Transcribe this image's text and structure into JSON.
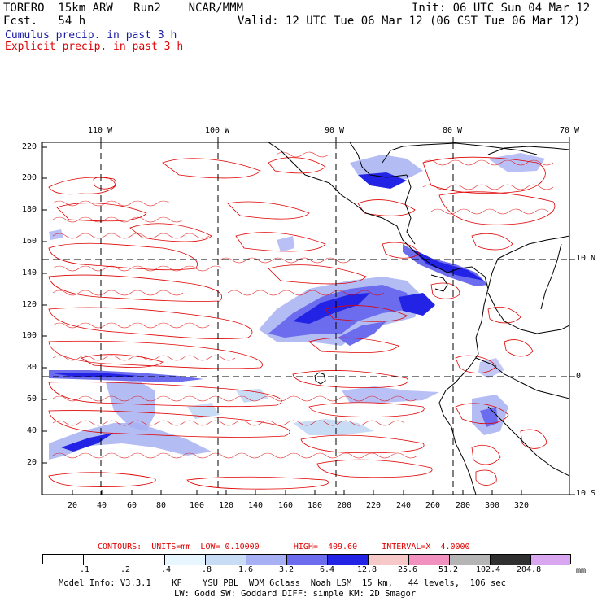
{
  "header": {
    "model": "TORERO  15km ARW   Run2    NCAR/MMM",
    "init": "Init: 06 UTC Sun 04 Mar 12",
    "fcst": "Fcst.   54 h",
    "valid": "Valid: 12 UTC Tue 06 Mar 12 (06 CST Tue 06 Mar 12)",
    "legend_cumulus": "Cumulus precip. in past 3 h",
    "legend_explicit": "Explicit precip. in past 3 h"
  },
  "colors": {
    "cumulus_text": "#1a1aa6",
    "explicit": "#e00000",
    "grid": "#000000"
  },
  "map": {
    "top_lon_labels": [
      "110 W",
      "100 W",
      "90 W",
      "80 W",
      "70 W"
    ],
    "right_lat_labels": [
      "10 N",
      "0",
      "10 S"
    ],
    "y_ticks": [
      "220",
      "200",
      "180",
      "160",
      "140",
      "120",
      "100",
      "80",
      "60",
      "40",
      "20"
    ],
    "x_ticks": [
      "20",
      "40",
      "60",
      "80",
      "100",
      "120",
      "140",
      "160",
      "180",
      "200",
      "220",
      "240",
      "260",
      "280",
      "300",
      "320"
    ]
  },
  "contour_info": {
    "text": "CONTOURS:  UNITS=mm  LOW= 0.10000       HIGH=  409.60     INTERVAL=X  4.0000"
  },
  "colorbar": {
    "labels": [
      ".1",
      ".2",
      ".4",
      ".8",
      "1.6",
      "3.2",
      "6.4",
      "12.8",
      "25.6",
      "51.2",
      "102.4",
      "204.8"
    ],
    "unit": "mm",
    "colors": [
      "#ffffff",
      "#ffffff",
      "#ffffff",
      "#e8f7ff",
      "#c9dcf6",
      "#a7b0f2",
      "#6c6cee",
      "#2323e6",
      "#f6c8c8",
      "#f091c0",
      "#b5b5b5",
      "#303030",
      "#d9a6f0"
    ]
  },
  "footer": {
    "line1": "Model Info: V3.3.1    KF    YSU PBL  WDM 6class  Noah LSM  15 km,   44 levels,  106 sec",
    "line2": "LW: Godd SW: Goddard DIFF: simple KM: 2D Smagor"
  }
}
